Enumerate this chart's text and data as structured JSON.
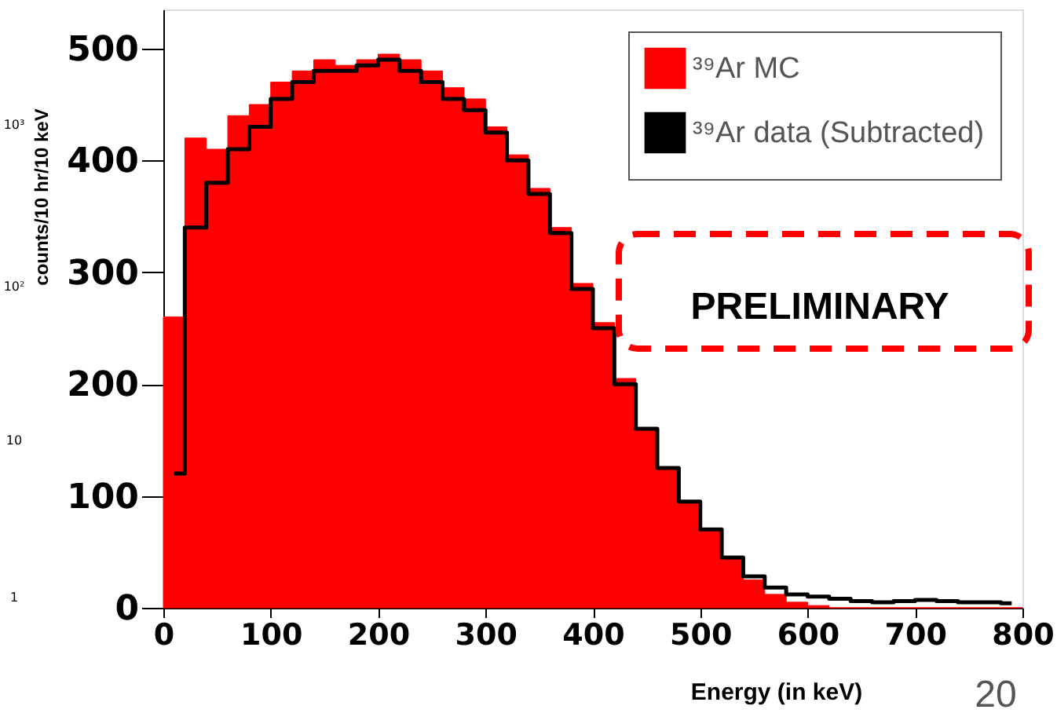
{
  "chart_data": {
    "type": "histogram",
    "xlabel": "Energy (in keV)",
    "ylabel": "counts/10 hr/10 keV",
    "bins": [
      0,
      20,
      40,
      60,
      80,
      100,
      120,
      140,
      160,
      180,
      200,
      220,
      240,
      260,
      280,
      300,
      320,
      340,
      360,
      380,
      400,
      420,
      440,
      460,
      480,
      500,
      520,
      540,
      560,
      580,
      600,
      620,
      640,
      660,
      680,
      700,
      720,
      740,
      760,
      780,
      800
    ],
    "series": [
      {
        "name": "³⁹Ar MC",
        "color": "#ff0000",
        "values": [
          260,
          420,
          410,
          440,
          450,
          470,
          480,
          490,
          485,
          490,
          495,
          490,
          480,
          465,
          455,
          430,
          405,
          375,
          340,
          290,
          255,
          205,
          160,
          125,
          95,
          70,
          45,
          25,
          12,
          5,
          2,
          0,
          0,
          0,
          0,
          0,
          0,
          0,
          0,
          0
        ]
      },
      {
        "name": "³⁹Ar data (Subtracted)",
        "color": "#000000",
        "type": "step",
        "x": [
          10,
          30,
          50,
          70,
          90,
          110,
          130,
          150,
          170,
          190,
          210,
          230,
          250,
          270,
          290,
          310,
          330,
          350,
          370,
          390,
          410,
          430,
          450,
          470,
          490,
          510,
          530,
          550,
          570,
          590,
          610,
          630,
          650,
          670,
          690,
          710,
          730,
          750,
          770,
          790
        ],
        "values": [
          120,
          340,
          380,
          410,
          430,
          455,
          470,
          480,
          480,
          485,
          490,
          480,
          470,
          455,
          445,
          425,
          400,
          370,
          335,
          285,
          250,
          200,
          160,
          125,
          95,
          70,
          45,
          28,
          18,
          12,
          10,
          8,
          6,
          5,
          6,
          7,
          6,
          5,
          5,
          4
        ]
      }
    ],
    "xlim": [
      0,
      800
    ],
    "xticks": [
      0,
      100,
      200,
      300,
      400,
      500,
      600,
      700,
      800
    ],
    "ylim": [
      0,
      535
    ],
    "yticks": [
      0,
      100,
      200,
      300,
      400,
      500
    ],
    "grid": false,
    "legend": "top right",
    "annotations": [
      "PRELIMINARY",
      "10³",
      "10²",
      "10",
      "1",
      "20"
    ]
  }
}
